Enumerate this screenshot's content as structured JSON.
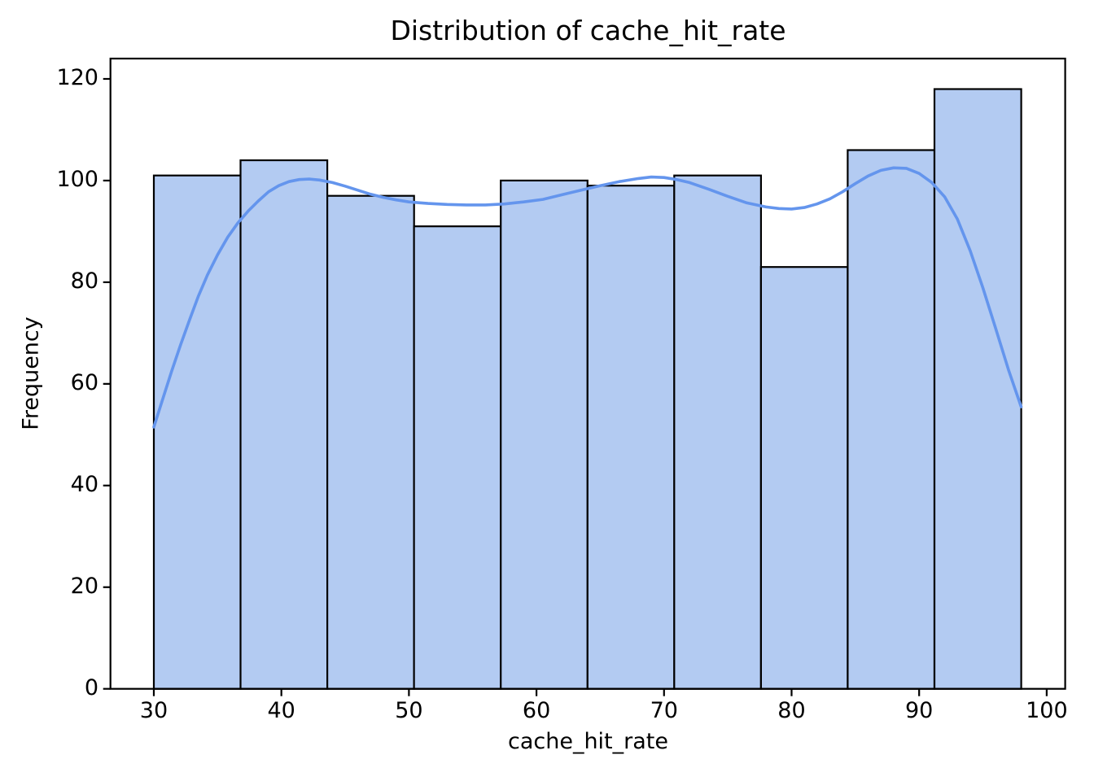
{
  "chart_data": {
    "type": "bar",
    "variant": "histogram_with_kde",
    "title": "Distribution of cache_hit_rate",
    "xlabel": "cache_hit_rate",
    "ylabel": "Frequency",
    "grid": false,
    "legend": "none",
    "bin_edges": [
      30,
      36.8,
      43.6,
      50.4,
      57.2,
      64.0,
      70.8,
      77.6,
      84.4,
      91.2,
      98.0
    ],
    "bin_counts": [
      101,
      104,
      97,
      91,
      100,
      99,
      101,
      83,
      106,
      118
    ],
    "x_ticks": [
      30,
      40,
      50,
      60,
      70,
      80,
      90,
      100
    ],
    "y_ticks": [
      0,
      20,
      40,
      60,
      80,
      100,
      120
    ],
    "xlim": [
      26.6,
      101.45
    ],
    "ylim": [
      0,
      124.0
    ],
    "kde_points": [
      [
        30,
        51.5
      ],
      [
        30.7,
        57
      ],
      [
        31.4,
        62.5
      ],
      [
        32.1,
        67.7
      ],
      [
        32.8,
        72.6
      ],
      [
        33.5,
        77.3
      ],
      [
        34.2,
        81.4
      ],
      [
        35,
        85.4
      ],
      [
        35.8,
        88.9
      ],
      [
        36.6,
        91.7
      ],
      [
        37.4,
        94
      ],
      [
        38.2,
        96
      ],
      [
        39,
        97.8
      ],
      [
        39.8,
        99
      ],
      [
        40.6,
        99.8
      ],
      [
        41.4,
        100.2
      ],
      [
        42.2,
        100.3
      ],
      [
        43,
        100.1
      ],
      [
        44,
        99.6
      ],
      [
        45,
        98.9
      ],
      [
        46,
        98.1
      ],
      [
        47,
        97.3
      ],
      [
        48,
        96.7
      ],
      [
        49,
        96.2
      ],
      [
        50,
        95.8
      ],
      [
        51.5,
        95.5
      ],
      [
        53,
        95.3
      ],
      [
        54.5,
        95.2
      ],
      [
        56,
        95.2
      ],
      [
        57.5,
        95.4
      ],
      [
        59,
        95.8
      ],
      [
        60.5,
        96.3
      ],
      [
        62,
        97.2
      ],
      [
        63.5,
        98.1
      ],
      [
        65,
        99
      ],
      [
        66.5,
        99.8
      ],
      [
        68,
        100.4
      ],
      [
        69,
        100.7
      ],
      [
        70,
        100.6
      ],
      [
        71,
        100.2
      ],
      [
        72,
        99.6
      ],
      [
        73.5,
        98.3
      ],
      [
        75,
        96.9
      ],
      [
        76.5,
        95.6
      ],
      [
        78,
        94.8
      ],
      [
        79,
        94.5
      ],
      [
        80,
        94.4
      ],
      [
        81,
        94.7
      ],
      [
        82,
        95.4
      ],
      [
        83,
        96.4
      ],
      [
        84,
        97.8
      ],
      [
        85,
        99.4
      ],
      [
        86,
        100.9
      ],
      [
        87,
        102
      ],
      [
        88,
        102.5
      ],
      [
        89,
        102.4
      ],
      [
        90,
        101.4
      ],
      [
        91,
        99.6
      ],
      [
        92,
        96.8
      ],
      [
        93,
        92.4
      ],
      [
        94,
        86.2
      ],
      [
        95,
        78.9
      ],
      [
        96,
        70.9
      ],
      [
        97,
        62.8
      ],
      [
        98,
        55.5
      ]
    ],
    "colors": {
      "bar_fill": "#b3cbf2",
      "bar_edge": "#000000",
      "kde_line": "#6495ed",
      "axis": "#000000",
      "text": "#000000",
      "background": "#ffffff"
    }
  }
}
